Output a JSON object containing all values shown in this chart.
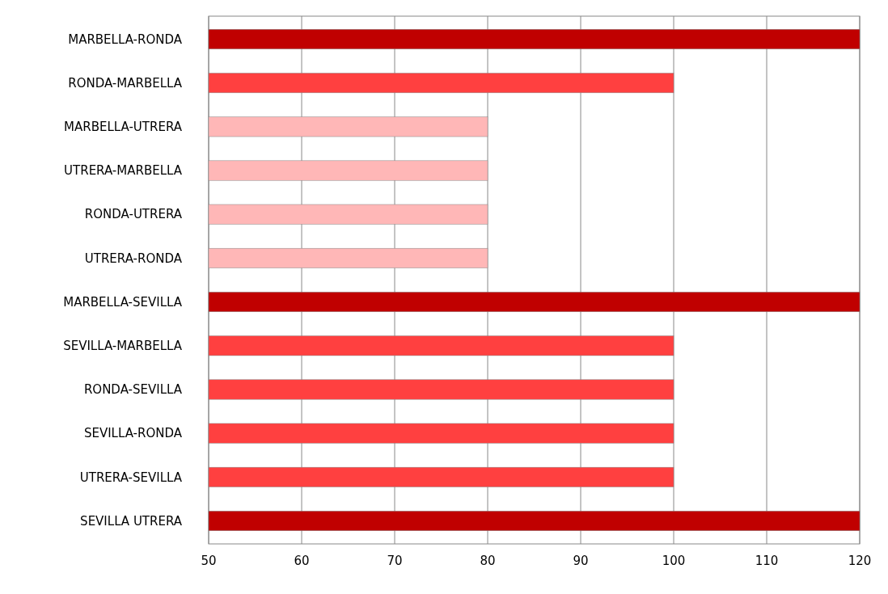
{
  "chart_data": {
    "type": "bar",
    "orientation": "horizontal",
    "categories": [
      "MARBELLA-RONDA",
      "RONDA-MARBELLA",
      "MARBELLA-UTRERA",
      "UTRERA-MARBELLA",
      "RONDA-UTRERA",
      "UTRERA-RONDA",
      "MARBELLA-SEVILLA",
      "SEVILLA-MARBELLA",
      "RONDA-SEVILLA",
      "SEVILLA-RONDA",
      "UTRERA-SEVILLA",
      "SEVILLA UTRERA"
    ],
    "values": [
      120,
      100,
      80,
      80,
      80,
      80,
      120,
      100,
      100,
      100,
      100,
      120
    ],
    "colors": [
      "#c00000",
      "#ff4040",
      "#ffb7b7",
      "#ffb7b7",
      "#ffb7b7",
      "#ffb7b7",
      "#c00000",
      "#ff4040",
      "#ff4040",
      "#ff4040",
      "#ff4040",
      "#c00000"
    ],
    "xlim": [
      50,
      120
    ],
    "xticks": [
      50,
      60,
      70,
      80,
      90,
      100,
      110,
      120
    ],
    "grid": "x"
  }
}
